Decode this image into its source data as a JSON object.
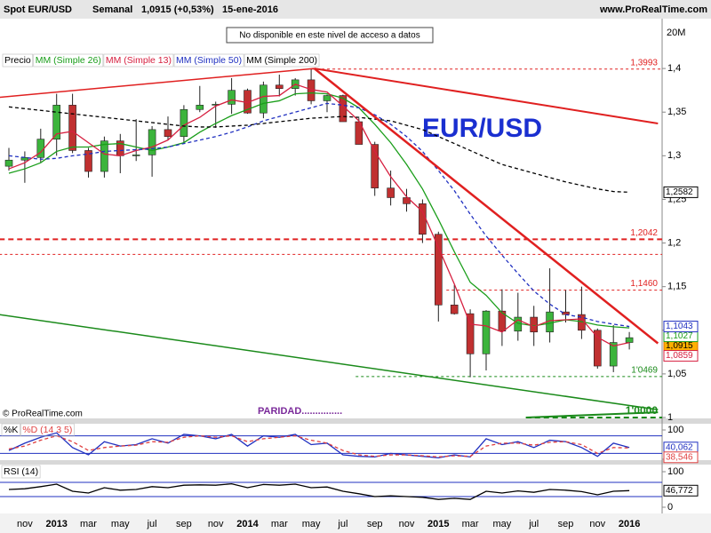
{
  "chart_data": [
    {
      "type": "candlestick",
      "title": "Spot EUR/USD",
      "subtitle": "Semanal",
      "last_quote": "1,0915 (+0,53%)",
      "date": "15-ene-2016",
      "source": "www.ProRealTime.com",
      "notice": "No disponible en este nivel de acceso a datos",
      "annotation": "EUR/USD",
      "copyright": "© ProRealTime.com",
      "paridad_label": "PARIDAD...............",
      "volume_axis_label": "20M",
      "price_label": "Precio",
      "color_up": "#3cb43c",
      "color_down": "#c03030",
      "categories": [
        null,
        "nov",
        null,
        "2013",
        null,
        "mar",
        null,
        "may",
        null,
        "jul",
        null,
        "sep",
        null,
        "nov",
        null,
        "2014",
        null,
        "mar",
        null,
        "may",
        null,
        "jul",
        null,
        "sep",
        null,
        "nov",
        null,
        "2015",
        null,
        "mar",
        null,
        "may",
        null,
        "jul",
        null,
        "sep",
        null,
        "nov",
        null,
        "2016"
      ],
      "open": [
        1.288,
        1.295,
        1.298,
        1.319,
        1.358,
        1.306,
        1.282,
        1.317,
        1.3,
        1.301,
        1.33,
        1.322,
        1.353,
        1.358,
        1.359,
        1.375,
        1.349,
        1.381,
        1.377,
        1.387,
        1.363,
        1.369,
        1.339,
        1.313,
        1.263,
        1.252,
        1.245,
        1.21,
        1.129,
        1.119,
        1.073,
        1.122,
        1.099,
        1.115,
        1.098,
        1.121,
        1.118,
        1.1,
        1.059,
        1.086
      ],
      "high": [
        1.309,
        1.305,
        1.331,
        1.371,
        1.371,
        1.309,
        1.322,
        1.325,
        1.342,
        1.334,
        1.345,
        1.358,
        1.38,
        1.362,
        1.389,
        1.377,
        1.385,
        1.393,
        1.389,
        1.3993,
        1.37,
        1.37,
        1.343,
        1.316,
        1.283,
        1.262,
        1.25,
        1.213,
        1.152,
        1.124,
        1.123,
        1.147,
        1.143,
        1.128,
        1.171,
        1.146,
        1.15,
        1.102,
        1.106,
        1.098
      ],
      "low": [
        1.283,
        1.269,
        1.292,
        1.3,
        1.303,
        1.275,
        1.275,
        1.28,
        1.294,
        1.276,
        1.318,
        1.315,
        1.35,
        1.332,
        1.348,
        1.348,
        1.343,
        1.368,
        1.369,
        1.359,
        1.35,
        1.339,
        1.313,
        1.254,
        1.243,
        1.236,
        1.2,
        1.11,
        1.118,
        1.0462,
        1.054,
        1.082,
        1.088,
        1.082,
        1.086,
        1.109,
        1.09,
        1.056,
        1.052,
        1.078
      ],
      "values": [
        1.295,
        1.298,
        1.319,
        1.358,
        1.306,
        1.282,
        1.317,
        1.3,
        1.301,
        1.33,
        1.322,
        1.353,
        1.358,
        1.359,
        1.375,
        1.349,
        1.381,
        1.377,
        1.387,
        1.363,
        1.369,
        1.339,
        1.313,
        1.263,
        1.252,
        1.245,
        1.21,
        1.129,
        1.119,
        1.073,
        1.122,
        1.099,
        1.115,
        1.098,
        1.121,
        1.118,
        1.1,
        1.059,
        1.086,
        1.0915
      ],
      "value_labels": [
        null,
        null,
        null,
        null,
        null,
        null,
        null,
        null,
        null,
        null,
        null,
        null,
        null,
        null,
        null,
        null,
        null,
        null,
        null,
        null,
        null,
        null,
        null,
        null,
        null,
        null,
        null,
        null,
        null,
        null,
        null,
        null,
        null,
        null,
        null,
        null,
        null,
        null,
        null,
        "1,0915"
      ],
      "series": [
        {
          "name": "MM (Simple 26)",
          "color": "#1a9e1a",
          "dash": false,
          "values": [
            1.28,
            1.285,
            1.292,
            1.305,
            1.31,
            1.31,
            1.313,
            1.314,
            1.31,
            1.306,
            1.31,
            1.315,
            1.327,
            1.337,
            1.346,
            1.353,
            1.36,
            1.363,
            1.371,
            1.372,
            1.371,
            1.366,
            1.355,
            1.336,
            1.315,
            1.29,
            1.262,
            1.227,
            1.19,
            1.155,
            1.14,
            1.12,
            1.108,
            1.105,
            1.108,
            1.112,
            1.11,
            1.106,
            1.104,
            1.1027
          ],
          "value_labels": [
            null,
            null,
            null,
            null,
            null,
            null,
            null,
            null,
            null,
            null,
            null,
            null,
            null,
            null,
            null,
            null,
            null,
            null,
            null,
            null,
            null,
            null,
            null,
            null,
            null,
            null,
            null,
            null,
            null,
            null,
            null,
            null,
            null,
            null,
            null,
            null,
            null,
            null,
            null,
            "1,1027"
          ]
        },
        {
          "name": "MM (Simple 13)",
          "color": "#d62040",
          "dash": false,
          "values": [
            1.285,
            1.292,
            1.304,
            1.325,
            1.328,
            1.315,
            1.302,
            1.3,
            1.306,
            1.31,
            1.318,
            1.335,
            1.344,
            1.357,
            1.364,
            1.361,
            1.368,
            1.369,
            1.382,
            1.376,
            1.373,
            1.357,
            1.34,
            1.305,
            1.276,
            1.253,
            1.236,
            1.195,
            1.153,
            1.107,
            1.105,
            1.098,
            1.112,
            1.104,
            1.111,
            1.112,
            1.113,
            1.092,
            1.082,
            1.0859
          ],
          "value_labels": [
            null,
            null,
            null,
            null,
            null,
            null,
            null,
            null,
            null,
            null,
            null,
            null,
            null,
            null,
            null,
            null,
            null,
            null,
            null,
            null,
            null,
            null,
            null,
            null,
            null,
            null,
            null,
            null,
            null,
            null,
            null,
            null,
            null,
            null,
            null,
            null,
            null,
            null,
            null,
            "1,0859"
          ]
        },
        {
          "name": "MM (Simple 50)",
          "color": "#2030c0",
          "dash": true,
          "values": [
            1.3,
            1.298,
            1.296,
            1.297,
            1.3,
            1.302,
            1.305,
            1.306,
            1.307,
            1.308,
            1.31,
            1.314,
            1.318,
            1.322,
            1.327,
            1.333,
            1.34,
            1.345,
            1.35,
            1.355,
            1.36,
            1.358,
            1.355,
            1.347,
            1.336,
            1.322,
            1.305,
            1.283,
            1.26,
            1.233,
            1.208,
            1.186,
            1.165,
            1.145,
            1.13,
            1.118,
            1.115,
            1.11,
            1.107,
            1.1043
          ],
          "value_labels": [
            null,
            null,
            null,
            null,
            null,
            null,
            null,
            null,
            null,
            null,
            null,
            null,
            null,
            null,
            null,
            null,
            null,
            null,
            null,
            null,
            null,
            null,
            null,
            null,
            null,
            null,
            null,
            null,
            null,
            null,
            null,
            null,
            null,
            null,
            null,
            null,
            null,
            null,
            null,
            "1,1043"
          ]
        },
        {
          "name": "MM (Simple 200)",
          "color": "#000000",
          "dash": true,
          "values": [
            1.356,
            1.354,
            1.352,
            1.35,
            1.348,
            1.346,
            1.344,
            1.342,
            1.34,
            1.338,
            1.336,
            1.334,
            1.333,
            1.333,
            1.334,
            1.335,
            1.337,
            1.339,
            1.341,
            1.343,
            1.344,
            1.345,
            1.344,
            1.342,
            1.34,
            1.335,
            1.33,
            1.322,
            1.314,
            1.306,
            1.298,
            1.29,
            1.285,
            1.28,
            1.275,
            1.27,
            1.266,
            1.262,
            1.259,
            1.2582
          ],
          "value_labels": [
            null,
            null,
            null,
            null,
            null,
            null,
            null,
            null,
            null,
            null,
            null,
            null,
            null,
            null,
            null,
            null,
            null,
            null,
            null,
            null,
            null,
            null,
            null,
            null,
            null,
            null,
            null,
            null,
            null,
            null,
            null,
            null,
            null,
            null,
            null,
            null,
            null,
            null,
            null,
            "1,2582"
          ]
        }
      ],
      "ylim": [
        1.0,
        1.45
      ],
      "yticks": [
        1,
        {
          "value": 1.05,
          "label": "1,05"
        },
        {
          "value": 1.1,
          "label": "1,1"
        },
        {
          "value": 1.15,
          "label": "1,15"
        },
        {
          "value": 1.2,
          "label": "1,2"
        },
        {
          "value": 1.25,
          "label": "1,25"
        },
        {
          "value": 1.3,
          "label": "1,3"
        },
        {
          "value": 1.35,
          "label": "1,35"
        },
        {
          "value": 1.4,
          "label": "1,4"
        }
      ],
      "hlines": [
        {
          "value": 1.3993,
          "label": "1,3993",
          "color": "#e02020",
          "start": 19
        },
        {
          "value": 1.2042,
          "label": "1,2042",
          "color": "#e02020",
          "start": -0.6,
          "bold": true
        },
        {
          "value": 1.187,
          "color": "#e02020",
          "start": -0.6
        },
        {
          "value": 1.146,
          "label": "1,1460",
          "color": "#e02020",
          "start": 27.5
        },
        {
          "value": 1.0469,
          "label": "1'0469",
          "color": "#1a8a1a",
          "start": 21.8
        },
        {
          "value": 1.0,
          "label": "1'0000",
          "color": "#1a8a1a",
          "start": 32.5,
          "bold": true
        }
      ],
      "trendlines": [
        {
          "from": [
            -0.6,
            1.367
          ],
          "to": [
            19.2,
            1.4
          ],
          "color": "#e02020",
          "width": 1.5
        },
        {
          "from": [
            19.2,
            1.4
          ],
          "to": [
            40.8,
            1.085
          ],
          "color": "#e02020",
          "width": 2.5
        },
        {
          "from": [
            19.2,
            1.4
          ],
          "to": [
            40.8,
            1.337
          ],
          "color": "#e02020",
          "width": 2
        },
        {
          "from": [
            -0.6,
            1.118
          ],
          "to": [
            40.8,
            1.009
          ],
          "color": "#1a8a1a",
          "width": 1.5
        },
        {
          "from": [
            32.5,
            1.0
          ],
          "to": [
            40.8,
            1.006
          ],
          "color": "#1a8a1a",
          "width": 2
        }
      ]
    },
    {
      "type": "line",
      "series": [
        {
          "name": "%K",
          "color": "#2030c0",
          "dash": false,
          "values": [
            30,
            55,
            75,
            90,
            40,
            15,
            60,
            45,
            50,
            70,
            55,
            85,
            80,
            70,
            85,
            45,
            80,
            75,
            85,
            50,
            55,
            15,
            10,
            8,
            20,
            15,
            10,
            5,
            15,
            8,
            70,
            50,
            60,
            40,
            65,
            60,
            40,
            10,
            55,
            40.062
          ],
          "value_labels": [
            null,
            null,
            null,
            null,
            null,
            null,
            null,
            null,
            null,
            null,
            null,
            null,
            null,
            null,
            null,
            null,
            null,
            null,
            null,
            null,
            null,
            null,
            null,
            null,
            null,
            null,
            null,
            null,
            null,
            null,
            null,
            null,
            null,
            null,
            null,
            null,
            null,
            null,
            null,
            "40,062"
          ]
        },
        {
          "name": "%D (14 3 5)",
          "color": "#e04040",
          "dash": true,
          "values": [
            35,
            45,
            65,
            80,
            60,
            30,
            40,
            45,
            48,
            60,
            58,
            75,
            80,
            75,
            80,
            60,
            70,
            75,
            80,
            65,
            55,
            30,
            15,
            10,
            15,
            15,
            12,
            8,
            12,
            10,
            45,
            55,
            55,
            48,
            58,
            60,
            50,
            20,
            40,
            38.546
          ],
          "value_labels": [
            null,
            null,
            null,
            null,
            null,
            null,
            null,
            null,
            null,
            null,
            null,
            null,
            null,
            null,
            null,
            null,
            null,
            null,
            null,
            null,
            null,
            null,
            null,
            null,
            null,
            null,
            null,
            null,
            null,
            null,
            null,
            null,
            null,
            null,
            null,
            null,
            null,
            null,
            null,
            "38,546"
          ]
        }
      ],
      "ylim": [
        0,
        100
      ],
      "yticks": [
        0,
        100
      ],
      "levels": [
        80,
        20
      ]
    },
    {
      "type": "line",
      "series": [
        {
          "name": "RSI (14)",
          "color": "#000000",
          "dash": false,
          "values": [
            50,
            52,
            58,
            65,
            45,
            40,
            55,
            48,
            50,
            58,
            55,
            62,
            63,
            62,
            66,
            55,
            64,
            62,
            65,
            55,
            57,
            45,
            38,
            30,
            32,
            30,
            28,
            22,
            25,
            22,
            45,
            40,
            46,
            42,
            50,
            48,
            44,
            35,
            45,
            46.772
          ],
          "value_labels": [
            null,
            null,
            null,
            null,
            null,
            null,
            null,
            null,
            null,
            null,
            null,
            null,
            null,
            null,
            null,
            null,
            null,
            null,
            null,
            null,
            null,
            null,
            null,
            null,
            null,
            null,
            null,
            null,
            null,
            null,
            null,
            null,
            null,
            null,
            null,
            null,
            null,
            null,
            null,
            "46,772"
          ]
        }
      ],
      "ylim": [
        0,
        100
      ],
      "yticks": [
        0,
        100
      ],
      "levels": [
        70,
        30
      ]
    }
  ]
}
